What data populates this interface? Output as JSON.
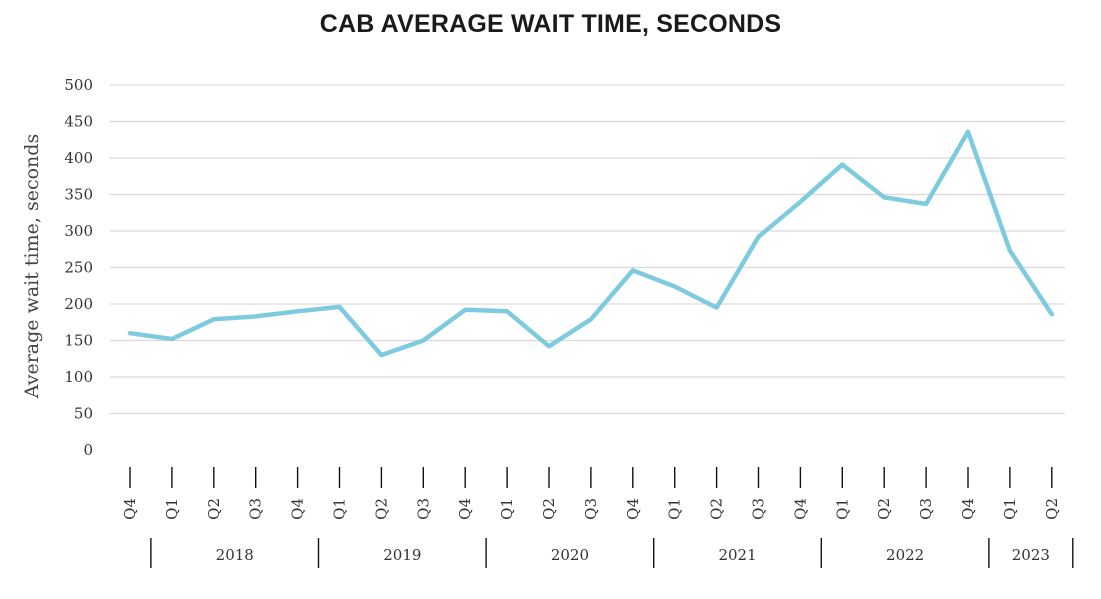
{
  "chart_data": {
    "type": "line",
    "title": "CAB AVERAGE WAIT TIME, SECONDS",
    "ylabel": "Average wait time, seconds",
    "xlabel": "",
    "ylim": [
      0,
      500
    ],
    "yticks": [
      0,
      50,
      100,
      150,
      200,
      250,
      300,
      350,
      400,
      450,
      500
    ],
    "grid": "horizontal",
    "legend": "none",
    "series_color": "#7ecbdf",
    "categories": [
      "Q4",
      "Q1",
      "Q2",
      "Q3",
      "Q4",
      "Q1",
      "Q2",
      "Q3",
      "Q4",
      "Q1",
      "Q2",
      "Q3",
      "Q4",
      "Q1",
      "Q2",
      "Q3",
      "Q4",
      "Q1",
      "Q2",
      "Q3",
      "Q4",
      "Q1",
      "Q2"
    ],
    "year_groups": [
      {
        "label": "",
        "count": 1
      },
      {
        "label": "2018",
        "count": 4
      },
      {
        "label": "2019",
        "count": 4
      },
      {
        "label": "2020",
        "count": 4
      },
      {
        "label": "2021",
        "count": 4
      },
      {
        "label": "2022",
        "count": 4
      },
      {
        "label": "2023",
        "count": 2
      }
    ],
    "values": [
      160,
      152,
      179,
      183,
      190,
      196,
      130,
      150,
      192,
      190,
      142,
      179,
      246,
      224,
      195,
      292,
      340,
      391,
      346,
      337,
      436,
      273,
      186
    ]
  }
}
